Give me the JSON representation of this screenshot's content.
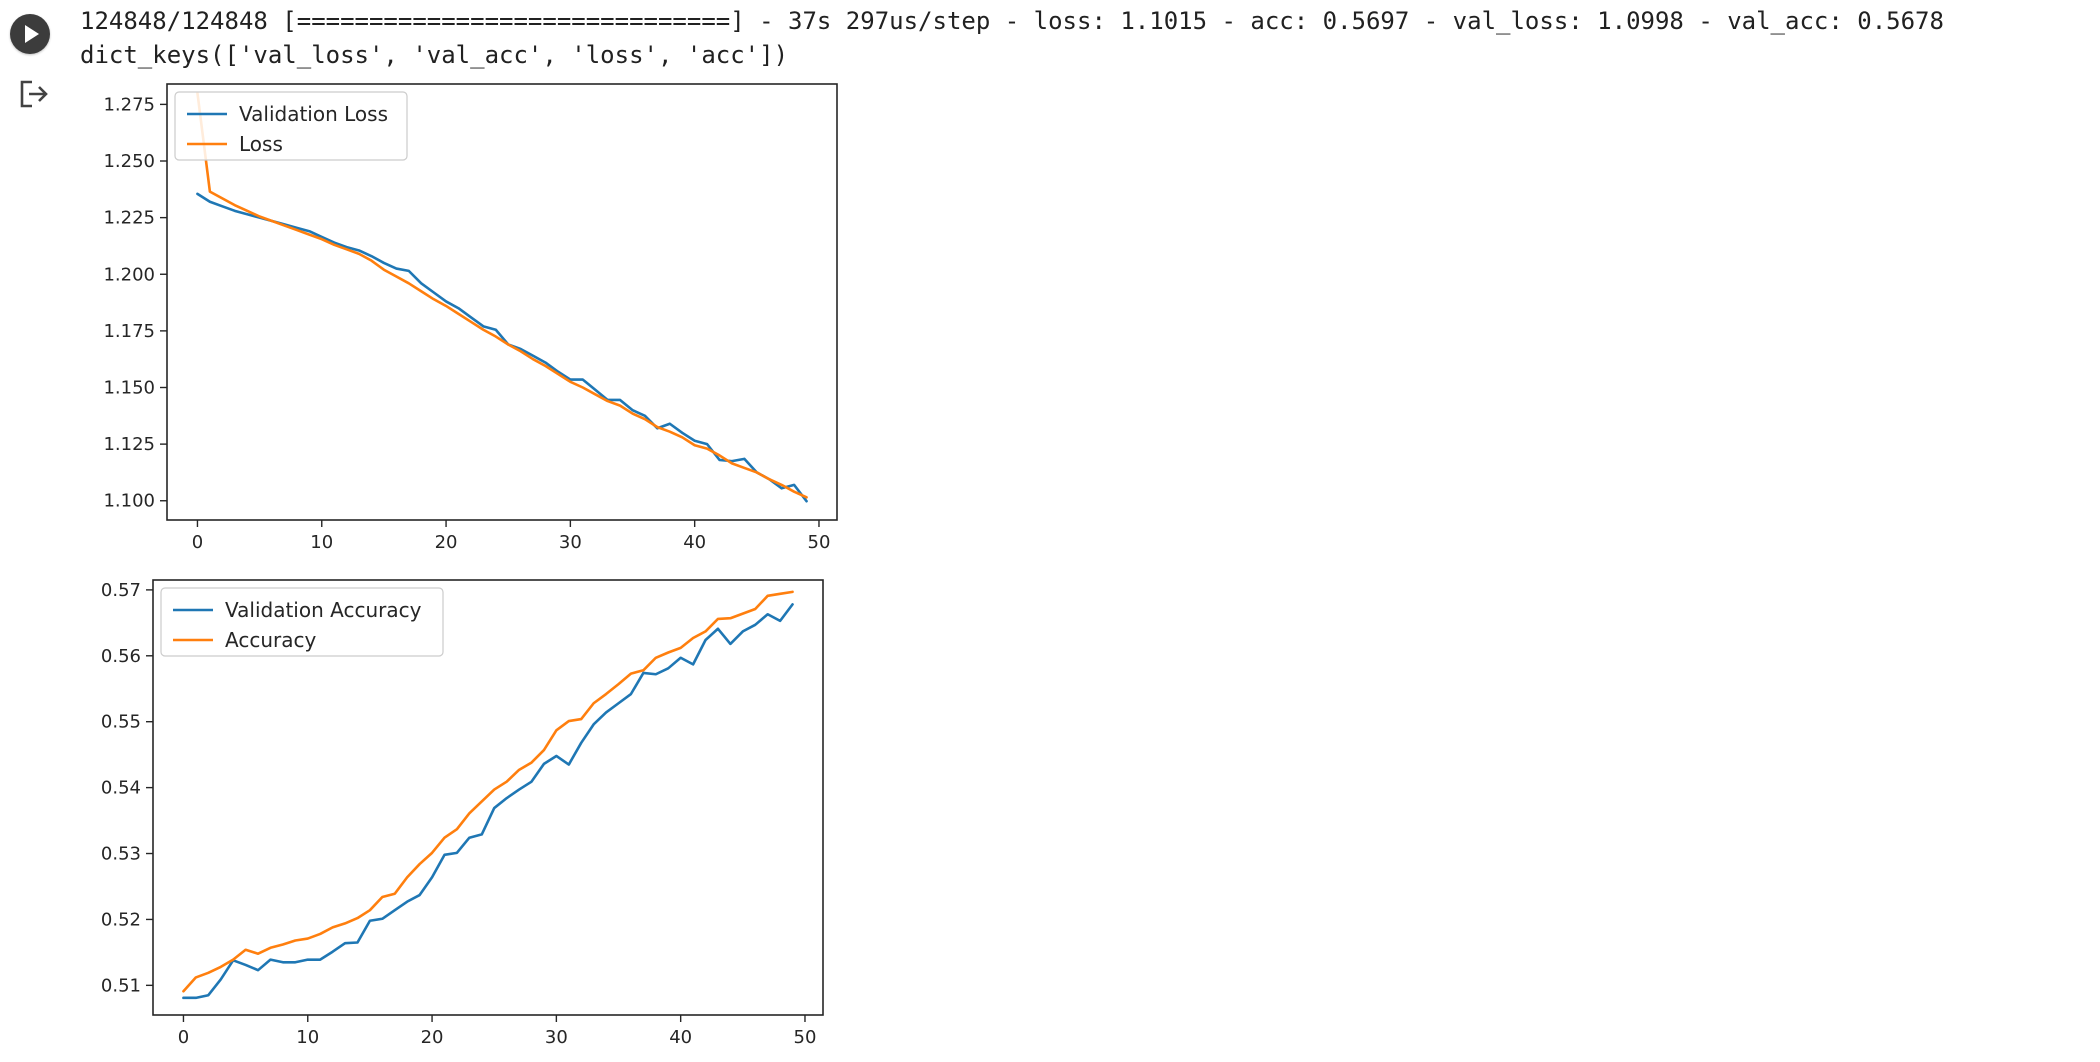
{
  "cell": {
    "run_icon": "play-icon",
    "output_icon": "output-arrow-icon",
    "output_lines": [
      "124848/124848 [==============================] - 37s 297us/step - loss: 1.1015 - acc: 0.5697 - val_loss: 1.0998 - val_acc: 0.5678",
      "dict_keys(['val_loss', 'val_acc', 'loss', 'acc'])"
    ]
  },
  "colors": {
    "series_blue": "#1f77b4",
    "series_orange": "#ff7f0e",
    "run_button": "#3c3c3c"
  },
  "chart_data": [
    {
      "type": "line",
      "title": "",
      "xlabel": "",
      "ylabel": "",
      "xlim": [
        -2.45,
        51.45
      ],
      "ylim": [
        1.0915,
        1.284
      ],
      "x_ticks": [
        0,
        10,
        20,
        30,
        40,
        50
      ],
      "x_tick_labels": [
        "0",
        "10",
        "20",
        "30",
        "40",
        "50"
      ],
      "y_ticks": [
        1.1,
        1.125,
        1.15,
        1.175,
        1.2,
        1.225,
        1.25,
        1.275
      ],
      "y_tick_labels": [
        "1.100",
        "1.125",
        "1.150",
        "1.175",
        "1.200",
        "1.225",
        "1.250",
        "1.275"
      ],
      "grid": false,
      "legend_position": "top-left",
      "x": [
        0,
        1,
        2,
        3,
        4,
        5,
        6,
        7,
        8,
        9,
        10,
        11,
        12,
        13,
        14,
        15,
        16,
        17,
        18,
        19,
        20,
        21,
        22,
        23,
        24,
        25,
        26,
        27,
        28,
        29,
        30,
        31,
        32,
        33,
        34,
        35,
        36,
        37,
        38,
        39,
        40,
        41,
        42,
        43,
        44,
        45,
        46,
        47,
        48,
        49
      ],
      "series": [
        {
          "name": "Validation Loss",
          "color": "#1f77b4",
          "values": [
            1.2355,
            1.232,
            1.23,
            1.228,
            1.2265,
            1.225,
            1.2235,
            1.222,
            1.2205,
            1.219,
            1.2165,
            1.214,
            1.212,
            1.2105,
            1.208,
            1.205,
            1.2025,
            1.2015,
            1.196,
            1.192,
            1.188,
            1.185,
            1.181,
            1.177,
            1.1755,
            1.169,
            1.167,
            1.164,
            1.161,
            1.157,
            1.1535,
            1.1535,
            1.149,
            1.1445,
            1.1445,
            1.14,
            1.1375,
            1.132,
            1.134,
            1.13,
            1.1265,
            1.125,
            1.118,
            1.1175,
            1.1185,
            1.1125,
            1.1095,
            1.1055,
            1.107,
            1.0998
          ]
        },
        {
          "name": "Loss",
          "color": "#ff7f0e",
          "values": [
            1.28,
            1.2365,
            1.2335,
            1.2305,
            1.228,
            1.2255,
            1.2235,
            1.2215,
            1.2195,
            1.2175,
            1.2155,
            1.213,
            1.211,
            1.209,
            1.206,
            1.202,
            1.199,
            1.196,
            1.1925,
            1.189,
            1.186,
            1.1825,
            1.179,
            1.1755,
            1.1725,
            1.169,
            1.166,
            1.1625,
            1.1595,
            1.156,
            1.1525,
            1.15,
            1.147,
            1.144,
            1.142,
            1.1385,
            1.136,
            1.1325,
            1.1305,
            1.128,
            1.1245,
            1.123,
            1.12,
            1.1165,
            1.1145,
            1.1125,
            1.1095,
            1.107,
            1.104,
            1.1015
          ]
        }
      ]
    },
    {
      "type": "line",
      "title": "",
      "xlabel": "",
      "ylabel": "",
      "xlim": [
        -2.45,
        51.45
      ],
      "ylim": [
        0.5055,
        0.5715
      ],
      "x_ticks": [
        0,
        10,
        20,
        30,
        40,
        50
      ],
      "x_tick_labels": [
        "0",
        "10",
        "20",
        "30",
        "40",
        "50"
      ],
      "y_ticks": [
        0.51,
        0.52,
        0.53,
        0.54,
        0.55,
        0.56,
        0.57
      ],
      "y_tick_labels": [
        "0.51",
        "0.52",
        "0.53",
        "0.54",
        "0.55",
        "0.56",
        "0.57"
      ],
      "grid": false,
      "legend_position": "top-left",
      "x": [
        0,
        1,
        2,
        3,
        4,
        5,
        6,
        7,
        8,
        9,
        10,
        11,
        12,
        13,
        14,
        15,
        16,
        17,
        18,
        19,
        20,
        21,
        22,
        23,
        24,
        25,
        26,
        27,
        28,
        29,
        30,
        31,
        32,
        33,
        34,
        35,
        36,
        37,
        38,
        39,
        40,
        41,
        42,
        43,
        44,
        45,
        46,
        47,
        48,
        49
      ],
      "series": [
        {
          "name": "Validation Accuracy",
          "color": "#1f77b4",
          "values": [
            0.5081,
            0.5081,
            0.5085,
            0.5109,
            0.5138,
            0.5131,
            0.5123,
            0.5139,
            0.5135,
            0.5135,
            0.5139,
            0.5139,
            0.5151,
            0.5164,
            0.5165,
            0.5198,
            0.5201,
            0.5214,
            0.5227,
            0.5237,
            0.5264,
            0.5298,
            0.5301,
            0.5324,
            0.5329,
            0.5369,
            0.5384,
            0.5397,
            0.5409,
            0.5436,
            0.5448,
            0.5435,
            0.5468,
            0.5496,
            0.5514,
            0.5528,
            0.5542,
            0.5574,
            0.5572,
            0.5581,
            0.5597,
            0.5587,
            0.5624,
            0.5641,
            0.5618,
            0.5637,
            0.5647,
            0.5663,
            0.5653,
            0.5678
          ]
        },
        {
          "name": "Accuracy",
          "color": "#ff7f0e",
          "values": [
            0.5091,
            0.5112,
            0.5119,
            0.5128,
            0.5139,
            0.5154,
            0.5148,
            0.5157,
            0.5162,
            0.5168,
            0.5171,
            0.5178,
            0.5188,
            0.5194,
            0.5202,
            0.5214,
            0.5234,
            0.5239,
            0.5264,
            0.5284,
            0.5301,
            0.5324,
            0.5337,
            0.5361,
            0.5379,
            0.5397,
            0.5409,
            0.5427,
            0.5438,
            0.5457,
            0.5487,
            0.5501,
            0.5504,
            0.5528,
            0.5542,
            0.5557,
            0.5573,
            0.5578,
            0.5597,
            0.5605,
            0.5612,
            0.5627,
            0.5637,
            0.5656,
            0.5657,
            0.5664,
            0.5671,
            0.5691,
            0.5694,
            0.5697
          ]
        }
      ]
    }
  ]
}
